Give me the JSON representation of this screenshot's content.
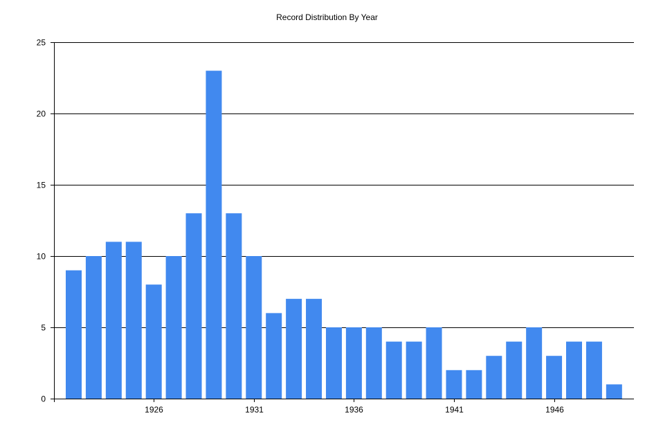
{
  "chart_data": {
    "type": "bar",
    "title": "Record Distribution By Year",
    "xlabel": "",
    "ylabel": "",
    "categories": [
      1922,
      1923,
      1924,
      1925,
      1926,
      1927,
      1928,
      1929,
      1930,
      1931,
      1932,
      1933,
      1934,
      1935,
      1936,
      1937,
      1938,
      1939,
      1940,
      1941,
      1942,
      1943,
      1944,
      1945,
      1946,
      1947,
      1948,
      1949
    ],
    "values": [
      9,
      10,
      11,
      11,
      8,
      10,
      13,
      23,
      13,
      10,
      6,
      7,
      7,
      5,
      5,
      5,
      4,
      4,
      5,
      2,
      2,
      3,
      4,
      5,
      3,
      4,
      4,
      1
    ],
    "ylim": [
      0,
      25
    ],
    "y_ticks": [
      0,
      5,
      10,
      15,
      20,
      25
    ],
    "x_tick_labels": [
      "1926",
      "1931",
      "1936",
      "1941",
      "1946"
    ],
    "grid": "horizontal",
    "legend": "none",
    "bar_color": "#4189ef"
  }
}
